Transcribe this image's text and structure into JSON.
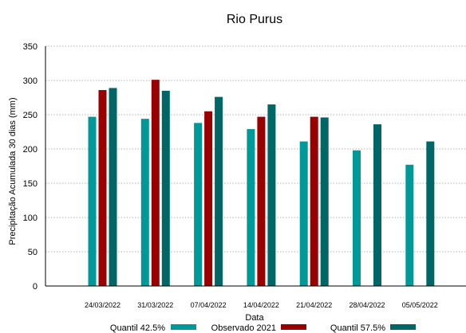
{
  "chart_data": {
    "type": "bar",
    "title": "Rio Purus",
    "xlabel": "Data",
    "ylabel": "Precipitação Acumulada 30 dias (mm)",
    "ylim": [
      0,
      350
    ],
    "yticks": [
      0,
      50,
      100,
      150,
      200,
      250,
      300,
      350
    ],
    "grid": true,
    "legend_position": "bottom",
    "categories": [
      "24/03/2022",
      "31/03/2022",
      "07/04/2022",
      "14/04/2022",
      "21/04/2022",
      "28/04/2022",
      "05/05/2022"
    ],
    "series": [
      {
        "name": "Quantil 42.5%",
        "color": "#009999",
        "values": [
          247,
          244,
          238,
          229,
          211,
          198,
          177
        ]
      },
      {
        "name": "Observado 2021",
        "color": "#990000",
        "values": [
          286,
          301,
          255,
          247,
          247,
          null,
          null
        ]
      },
      {
        "name": "Quantil 57.5%",
        "color": "#006666",
        "values": [
          289,
          285,
          276,
          265,
          246,
          236,
          211
        ]
      }
    ]
  }
}
